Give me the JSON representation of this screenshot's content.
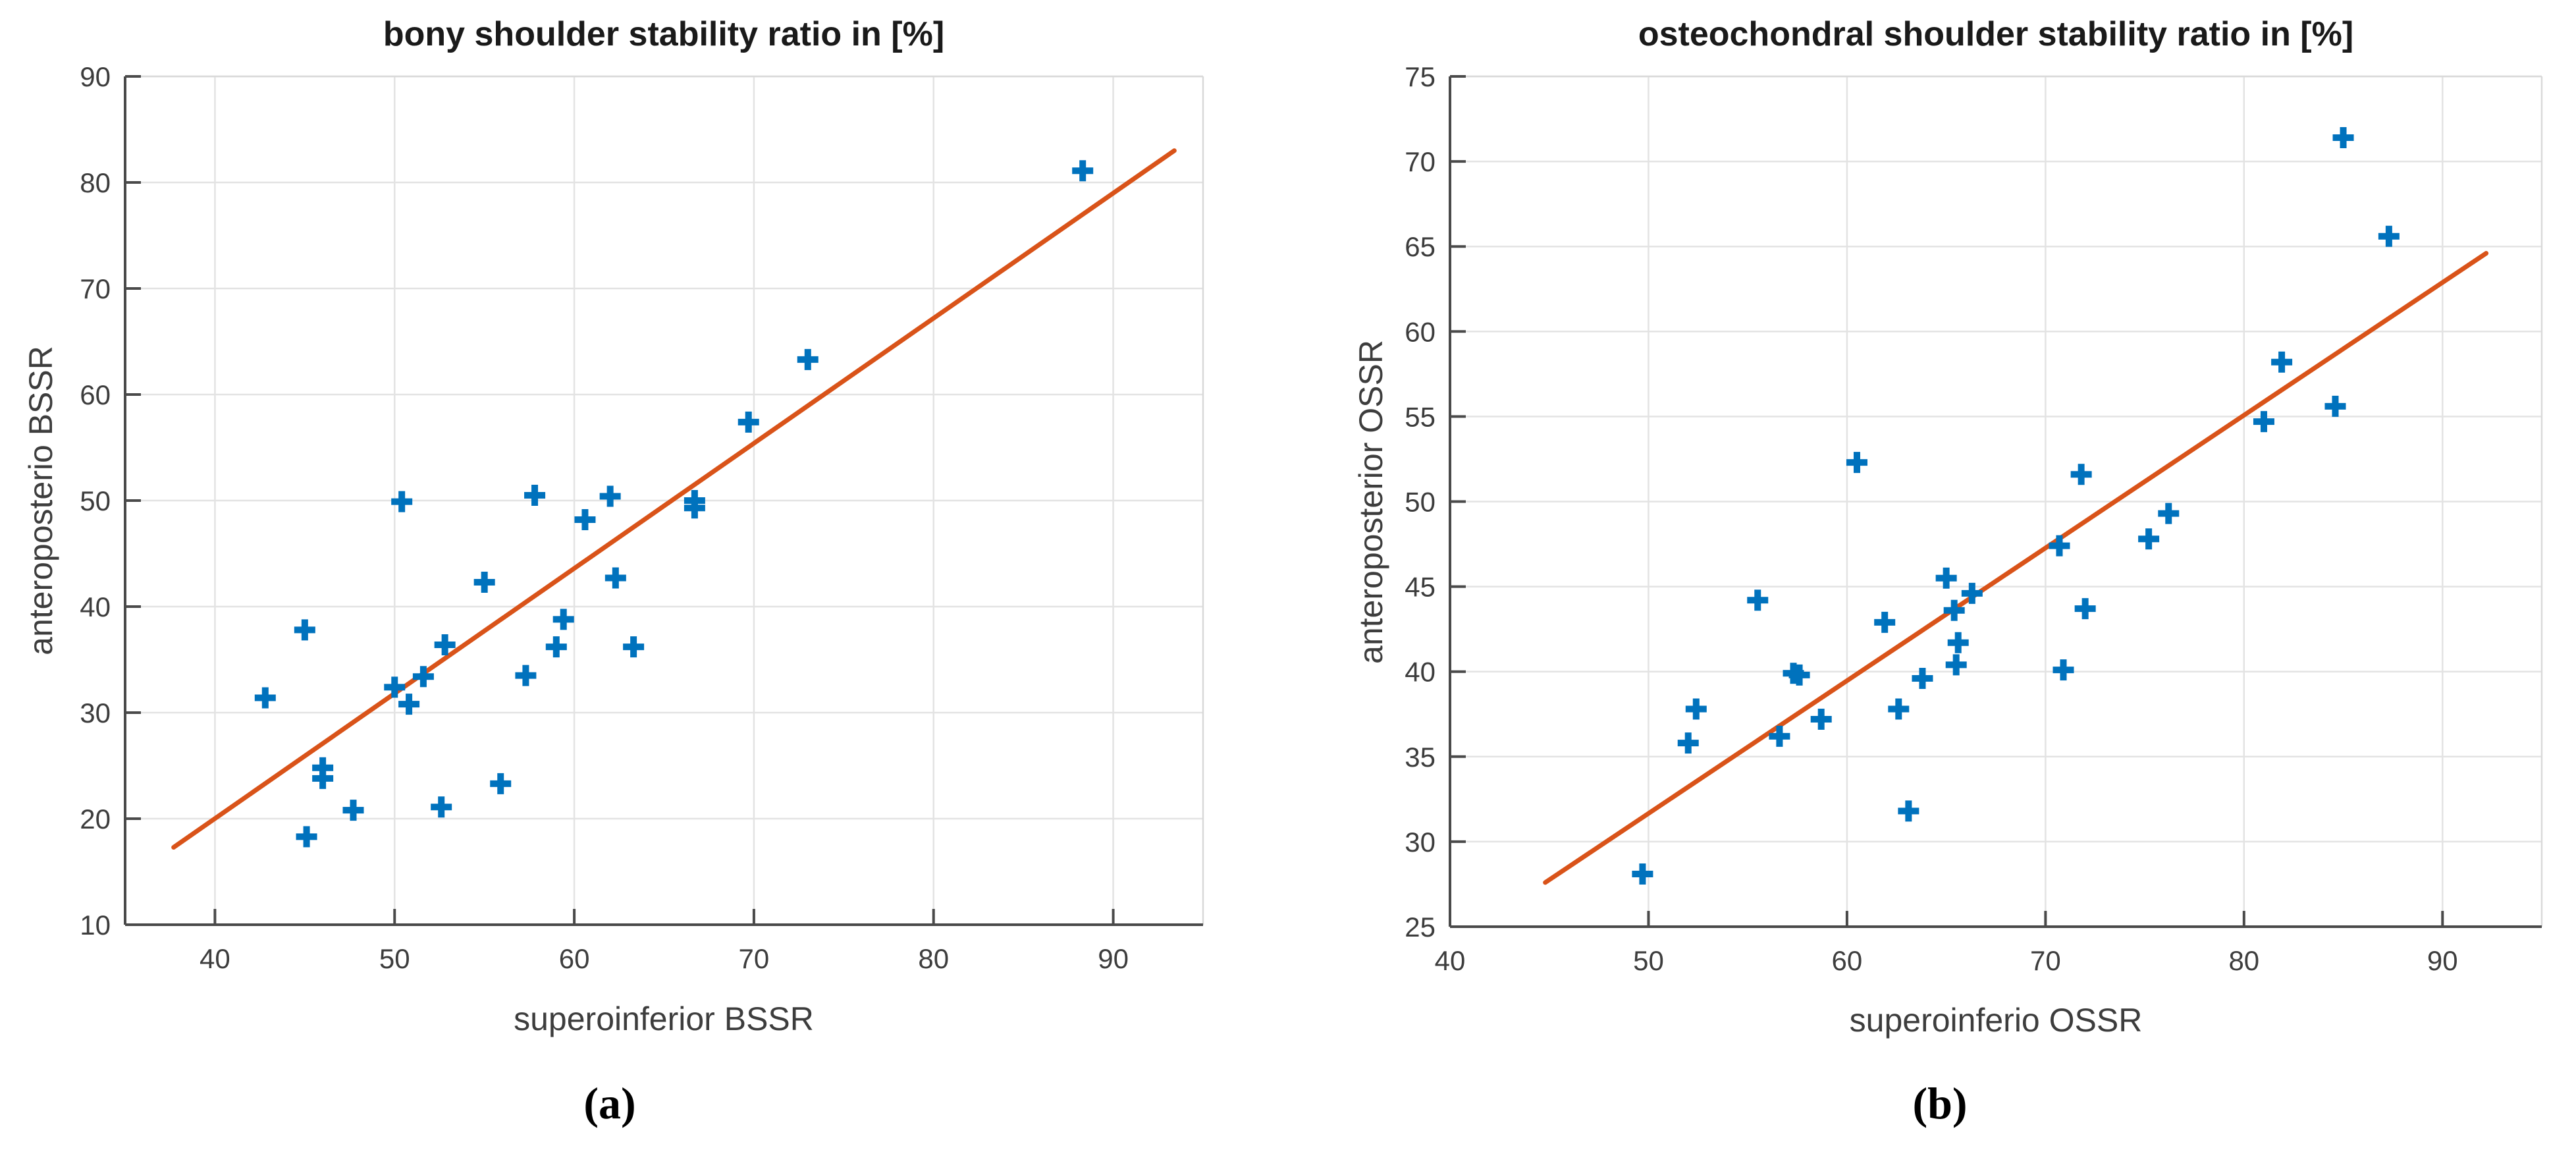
{
  "figure": {
    "panel_labels": [
      "(a)",
      "(b)"
    ]
  },
  "colors": {
    "marker_blue": "#0072BD",
    "fit_line_orange": "#D95319",
    "grid": "#e3e3e3",
    "box_light": "#d9d9d9",
    "axis_dark": "#4a4a4a",
    "tick_text": "#3d3d3d",
    "title_text": "#1a1a1a",
    "background": "#ffffff"
  },
  "chart_data": [
    {
      "type": "scatter",
      "title": "bony shoulder stability ratio in [%]",
      "xlabel": "superoinferior BSSR",
      "ylabel": "anteroposterio BSSR",
      "xlim": [
        35,
        95
      ],
      "ylim": [
        10,
        90
      ],
      "xticks": [
        40,
        50,
        60,
        70,
        80,
        90
      ],
      "yticks": [
        10,
        20,
        30,
        40,
        50,
        60,
        70,
        80,
        90
      ],
      "grid": true,
      "legend": null,
      "marker": "plus",
      "points": [
        [
          42.8,
          31.4
        ],
        [
          45.0,
          37.8
        ],
        [
          45.1,
          18.3
        ],
        [
          46.0,
          24.8
        ],
        [
          46.0,
          23.8
        ],
        [
          47.7,
          20.8
        ],
        [
          50.0,
          32.4
        ],
        [
          50.4,
          49.9
        ],
        [
          50.8,
          30.8
        ],
        [
          51.6,
          33.4
        ],
        [
          52.6,
          21.1
        ],
        [
          52.8,
          36.4
        ],
        [
          55.0,
          42.3
        ],
        [
          55.9,
          23.3
        ],
        [
          57.3,
          33.5
        ],
        [
          57.8,
          50.5
        ],
        [
          59.0,
          36.2
        ],
        [
          59.4,
          38.8
        ],
        [
          60.6,
          48.2
        ],
        [
          62.0,
          50.4
        ],
        [
          62.3,
          42.7
        ],
        [
          63.3,
          36.2
        ],
        [
          66.7,
          50.0
        ],
        [
          66.7,
          49.3
        ],
        [
          69.7,
          57.4
        ],
        [
          73.0,
          63.3
        ],
        [
          88.3,
          81.1
        ]
      ],
      "fit_line": {
        "x": [
          37.7,
          93.4
        ],
        "y": [
          17.3,
          83.0
        ]
      }
    },
    {
      "type": "scatter",
      "title": "osteochondral shoulder stability ratio in [%]",
      "xlabel": "superoinferio OSSR",
      "ylabel": "anteroposterior OSSR",
      "xlim": [
        40,
        95
      ],
      "ylim": [
        25,
        75
      ],
      "xticks": [
        40,
        50,
        60,
        70,
        80,
        90
      ],
      "yticks": [
        25,
        30,
        35,
        40,
        45,
        50,
        55,
        60,
        65,
        70,
        75
      ],
      "grid": true,
      "legend": null,
      "marker": "plus",
      "points": [
        [
          49.7,
          28.1
        ],
        [
          52.0,
          35.8
        ],
        [
          52.4,
          37.8
        ],
        [
          55.5,
          44.2
        ],
        [
          56.6,
          36.2
        ],
        [
          57.3,
          39.9
        ],
        [
          57.6,
          39.8
        ],
        [
          58.7,
          37.2
        ],
        [
          60.5,
          52.3
        ],
        [
          61.9,
          42.9
        ],
        [
          62.6,
          37.8
        ],
        [
          63.1,
          31.8
        ],
        [
          63.8,
          39.6
        ],
        [
          65.0,
          45.5
        ],
        [
          65.4,
          43.6
        ],
        [
          65.5,
          40.4
        ],
        [
          65.6,
          41.7
        ],
        [
          66.3,
          44.6
        ],
        [
          70.7,
          47.4
        ],
        [
          70.9,
          40.1
        ],
        [
          71.8,
          51.6
        ],
        [
          72.0,
          43.7
        ],
        [
          75.2,
          47.8
        ],
        [
          76.2,
          49.3
        ],
        [
          81.0,
          54.7
        ],
        [
          81.9,
          58.2
        ],
        [
          84.6,
          55.6
        ],
        [
          85.0,
          71.4
        ],
        [
          87.3,
          65.6
        ]
      ],
      "fit_line": {
        "x": [
          44.8,
          92.2
        ],
        "y": [
          27.6,
          64.6
        ]
      }
    }
  ]
}
